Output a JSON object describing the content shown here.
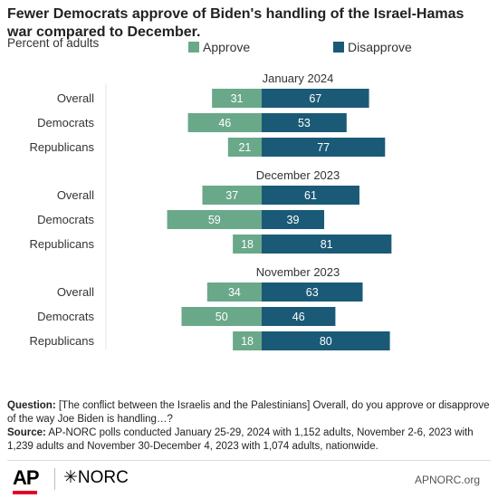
{
  "title": "Fewer Democrats approve of Biden's handling of the Israel-Hamas war compared to December.",
  "subtitle": "Percent of adults",
  "legend": [
    {
      "label": "Approve",
      "color": "#6aa88a"
    },
    {
      "label": "Disapprove",
      "color": "#1b5a77"
    }
  ],
  "chart_data": {
    "type": "bar",
    "orientation": "horizontal-diverging",
    "categories": [
      "Overall",
      "Democrats",
      "Republicans"
    ],
    "groups": [
      {
        "title": "January 2024",
        "approve": [
          31,
          46,
          21
        ],
        "disapprove": [
          67,
          53,
          77
        ]
      },
      {
        "title": "December 2023",
        "approve": [
          37,
          59,
          18
        ],
        "disapprove": [
          61,
          39,
          81
        ]
      },
      {
        "title": "November 2023",
        "approve": [
          34,
          50,
          18
        ],
        "disapprove": [
          63,
          46,
          80
        ]
      }
    ],
    "series": [
      {
        "name": "Approve",
        "color": "#6aa88a"
      },
      {
        "name": "Disapprove",
        "color": "#1b5a77"
      }
    ],
    "legend_position": "top"
  },
  "notes": {
    "question_label": "Question:",
    "question": " [The conflict between the Israelis and the Palestinians] Overall, do you approve or disapprove of the way Joe Biden is handling…?",
    "source_label": "Source:",
    "source": " AP-NORC polls conducted January 25-29, 2024 with 1,152 adults, November 2-6, 2023 with 1,239 adults and November 30-December 4, 2023 with 1,074 adults, nationwide."
  },
  "footer": {
    "logo_ap": "AP",
    "logo_norc": "✳NORC",
    "site": "APNORC.org"
  }
}
